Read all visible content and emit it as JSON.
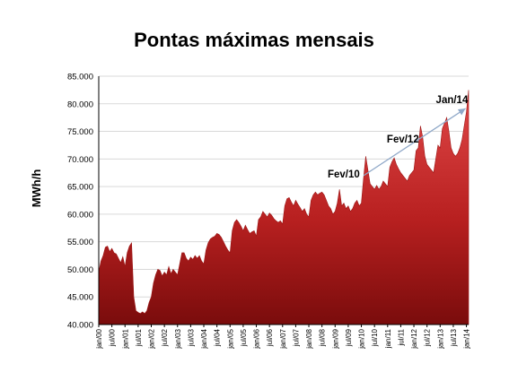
{
  "chart_data": {
    "type": "area",
    "title": "Pontas máximas mensais",
    "xlabel": "",
    "ylabel": "MWh/h",
    "ylim": [
      40000,
      85000
    ],
    "yticks": [
      40000,
      45000,
      50000,
      55000,
      60000,
      65000,
      70000,
      75000,
      80000,
      85000
    ],
    "ytick_labels": [
      "40.000",
      "45.000",
      "50.000",
      "55.000",
      "60.000",
      "65.000",
      "70.000",
      "75.000",
      "80.000",
      "85.000"
    ],
    "grid": true,
    "fill_color": "#b82020",
    "arrow_color": "#8fa8c8",
    "x_tick_labels": [
      "jan/00",
      "jul/00",
      "jan/01",
      "jul/01",
      "jan/02",
      "jul/02",
      "jan/03",
      "jul/03",
      "jan/04",
      "jul/04",
      "jan/05",
      "jul/05",
      "jan/06",
      "jul/06",
      "jan/07",
      "jul/07",
      "jan/08",
      "jul/08",
      "jan/09",
      "jul/09",
      "jan/10",
      "jul/10",
      "jan/11",
      "jul/11",
      "jan/12",
      "jul/12",
      "jan/13",
      "jul/13",
      "jan/14"
    ],
    "start": "jan/00",
    "end": "jan/14",
    "series": [
      {
        "values": [
          49500,
          51500,
          52500,
          54000,
          54200,
          53200,
          53800,
          53000,
          52800,
          52000,
          51200,
          52300,
          50500,
          53000,
          54200,
          54800,
          45000,
          42500,
          42200,
          42000,
          42300,
          42000,
          42500,
          44000,
          45000,
          47500,
          49000,
          50000,
          49800,
          48800,
          49500,
          49000,
          50500,
          49200,
          50000,
          49500,
          49000,
          51000,
          53000,
          53000,
          52000,
          51500,
          52200,
          51800,
          52500,
          52000,
          52500,
          51500,
          51000,
          53500,
          54800,
          55500,
          55800,
          56000,
          56500,
          56300,
          55800,
          55000,
          54200,
          53500,
          53000,
          57000,
          58500,
          59000,
          58500,
          57800,
          57000,
          58000,
          57200,
          56500,
          56800,
          57000,
          56000,
          59000,
          59500,
          60500,
          60000,
          59500,
          60200,
          59800,
          59200,
          58800,
          58500,
          58800,
          58200,
          61500,
          62800,
          63000,
          62200,
          61500,
          62500,
          61800,
          61200,
          60500,
          61000,
          60000,
          59500,
          62500,
          63500,
          64000,
          63500,
          63800,
          64000,
          63500,
          62500,
          61500,
          61000,
          60000,
          60500,
          62000,
          64500,
          61500,
          62000,
          61000,
          61500,
          60500,
          61000,
          62000,
          62500,
          61500,
          62000,
          66500,
          70500,
          68000,
          65500,
          65000,
          64500,
          65200,
          64500,
          65000,
          66000,
          65500,
          65000,
          68500,
          69500,
          70200,
          69000,
          68200,
          67500,
          67000,
          66500,
          66000,
          67000,
          67500,
          68000,
          71500,
          72000,
          76000,
          74000,
          70500,
          69000,
          68500,
          68000,
          67500,
          70000,
          72500,
          72000,
          75500,
          76500,
          77500,
          75000,
          72000,
          71000,
          70500,
          71000,
          72000,
          73500,
          76000,
          78500,
          82500
        ]
      }
    ],
    "annotations": [
      {
        "label": "Fev/10",
        "index": 121
      },
      {
        "label": "Fev/12",
        "index": 146
      },
      {
        "label": "Jan/14",
        "index": 168
      }
    ]
  }
}
